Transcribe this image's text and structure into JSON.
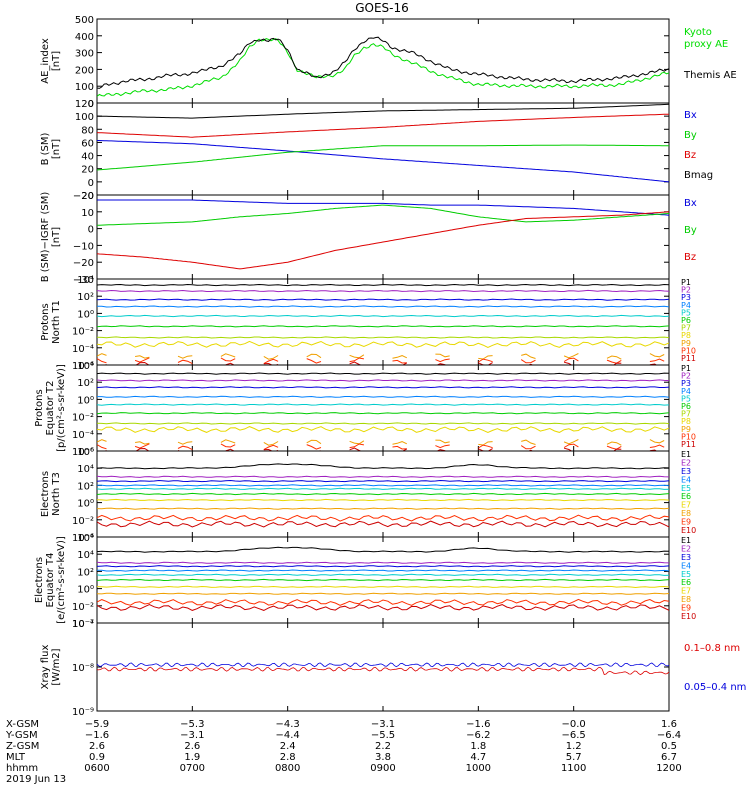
{
  "title": "GOES-16",
  "chart_data": [
    {
      "type": "line",
      "panel": "AE index",
      "ylabel": [
        "AE_index",
        "[nT]"
      ],
      "ylim": [
        0,
        500
      ],
      "yticks": [
        "0",
        "100",
        "200",
        "300",
        "400",
        "500"
      ],
      "series": [
        {
          "name": "Kyoto proxy AE",
          "label_lines": [
            "Kyoto",
            "proxy AE"
          ],
          "color": "#00dd00",
          "x": [
            6.0,
            6.1,
            6.3,
            6.5,
            6.7,
            6.9,
            7.1,
            7.3,
            7.5,
            7.6,
            7.7,
            7.8,
            7.9,
            8.0,
            8.1,
            8.3,
            8.5,
            8.6,
            8.7,
            8.8,
            8.9,
            9.0,
            9.1,
            9.3,
            9.5,
            9.7,
            10.0,
            10.5,
            11.0,
            11.5,
            12.0
          ],
          "values": [
            40,
            45,
            60,
            70,
            80,
            90,
            120,
            150,
            250,
            330,
            380,
            380,
            370,
            300,
            200,
            150,
            170,
            200,
            280,
            330,
            350,
            330,
            290,
            240,
            190,
            150,
            110,
            100,
            100,
            110,
            180
          ]
        },
        {
          "name": "Themis AE",
          "label_lines": [
            "Themis AE"
          ],
          "color": "#000000",
          "x": [
            6.0,
            6.1,
            6.3,
            6.5,
            6.7,
            6.9,
            7.1,
            7.3,
            7.5,
            7.6,
            7.7,
            7.8,
            7.9,
            8.0,
            8.1,
            8.3,
            8.5,
            8.6,
            8.7,
            8.8,
            8.9,
            9.0,
            9.1,
            9.3,
            9.5,
            9.7,
            10.0,
            10.5,
            11.0,
            11.5,
            12.0
          ],
          "values": [
            80,
            110,
            130,
            140,
            160,
            170,
            190,
            220,
            290,
            360,
            380,
            370,
            380,
            320,
            200,
            150,
            190,
            240,
            320,
            370,
            390,
            370,
            330,
            300,
            250,
            200,
            170,
            140,
            130,
            150,
            200
          ]
        }
      ]
    },
    {
      "type": "line",
      "panel": "B (SM)",
      "ylabel": [
        "B (SM)",
        "[nT]"
      ],
      "ylim": [
        -20,
        120
      ],
      "yticks": [
        "−20",
        "0",
        "20",
        "40",
        "60",
        "80",
        "100",
        "120"
      ],
      "series": [
        {
          "name": "Bx",
          "color": "#0000dd",
          "x": [
            6.0,
            7.0,
            8.0,
            9.0,
            10.0,
            11.0,
            12.0
          ],
          "values": [
            63,
            58,
            47,
            35,
            25,
            15,
            0
          ]
        },
        {
          "name": "By",
          "color": "#00cc00",
          "x": [
            6.0,
            7.0,
            8.0,
            9.0,
            10.0,
            11.0,
            12.0
          ],
          "values": [
            18,
            30,
            45,
            55,
            55,
            56,
            55
          ]
        },
        {
          "name": "Bz",
          "color": "#dd0000",
          "x": [
            6.0,
            7.0,
            8.0,
            9.0,
            10.0,
            11.0,
            12.0
          ],
          "values": [
            75,
            68,
            76,
            83,
            92,
            98,
            103
          ]
        },
        {
          "name": "Bmag",
          "color": "#000000",
          "x": [
            6.0,
            7.0,
            8.0,
            9.0,
            10.0,
            11.0,
            12.0
          ],
          "values": [
            100,
            97,
            103,
            108,
            110,
            112,
            118
          ]
        }
      ]
    },
    {
      "type": "line",
      "panel": "B (SM)-IGRF (SM)",
      "ylabel": [
        "B (SM)−IGRF (SM)",
        "[nT]"
      ],
      "ylim": [
        -30,
        20
      ],
      "yticks": [
        "−30",
        "−20",
        "−10",
        "0",
        "10",
        "20"
      ],
      "series": [
        {
          "name": "Bx",
          "color": "#0000dd",
          "x": [
            6.0,
            6.5,
            7.0,
            7.5,
            8.0,
            8.5,
            9.0,
            9.5,
            10.0,
            10.5,
            11.0,
            11.5,
            12.0
          ],
          "values": [
            17,
            17,
            17,
            16,
            15,
            15,
            15,
            14,
            14,
            13,
            12,
            10,
            8
          ]
        },
        {
          "name": "By",
          "color": "#00cc00",
          "x": [
            6.0,
            6.5,
            7.0,
            7.5,
            8.0,
            8.5,
            9.0,
            9.5,
            10.0,
            10.5,
            11.0,
            11.5,
            12.0
          ],
          "values": [
            2,
            3,
            4,
            7,
            9,
            12,
            14,
            12,
            7,
            4,
            5,
            7,
            9
          ]
        },
        {
          "name": "Bz",
          "color": "#dd0000",
          "x": [
            6.0,
            6.5,
            7.0,
            7.5,
            8.0,
            8.5,
            9.0,
            9.5,
            10.0,
            10.5,
            11.0,
            11.5,
            12.0
          ],
          "values": [
            -15,
            -17,
            -20,
            -24,
            -20,
            -13,
            -8,
            -3,
            2,
            6,
            7,
            8,
            10
          ]
        }
      ]
    },
    {
      "type": "line",
      "panel": "Protons North T1",
      "ylabel": [
        "Protons",
        "North T1"
      ],
      "log": true,
      "ylim_exp": [
        -6,
        4
      ],
      "yticks": [
        "10⁴",
        "10²",
        "10⁰",
        "10⁻²",
        "10⁻⁴",
        "10⁻⁶"
      ],
      "channels": [
        "P1",
        "P2",
        "P3",
        "P4",
        "P5",
        "P6",
        "P7",
        "P8",
        "P9",
        "P10",
        "P11"
      ],
      "channel_colors": [
        "#000000",
        "#a020c0",
        "#0000dd",
        "#0080ff",
        "#00cccc",
        "#00cc00",
        "#a8d800",
        "#e8d800",
        "#f0a000",
        "#ff3000",
        "#cc0000"
      ],
      "log_levels": [
        3.3,
        2.6,
        1.6,
        0.8,
        -0.3,
        -1.5,
        -2.8,
        -3.6,
        -5,
        -5.5,
        -6
      ]
    },
    {
      "type": "line",
      "panel": "Protons Equator T2",
      "ylabel": [
        "Protons",
        "Equator T2",
        "[p/(cm²-s-sr-keV)]"
      ],
      "log": true,
      "ylim_exp": [
        -6,
        4
      ],
      "yticks": [
        "10⁴",
        "10²",
        "10⁰",
        "10⁻²",
        "10⁻⁴",
        "10⁻⁶"
      ],
      "channels": [
        "P1",
        "P2",
        "P3",
        "P4",
        "P5",
        "P6",
        "P7",
        "P8",
        "P9",
        "P10",
        "P11"
      ],
      "channel_colors": [
        "#000000",
        "#a020c0",
        "#0000dd",
        "#0080ff",
        "#00cccc",
        "#00cc00",
        "#a8d800",
        "#e8d800",
        "#f0a000",
        "#ff3000",
        "#cc0000"
      ],
      "log_levels": [
        3.0,
        2.2,
        1.4,
        0.3,
        -0.6,
        -1.6,
        -2.8,
        -3.5,
        -5,
        -5.5,
        -6
      ]
    },
    {
      "type": "line",
      "panel": "Electrons North T3",
      "ylabel": [
        "Electrons",
        "North T3"
      ],
      "log": true,
      "ylim_exp": [
        -4,
        6
      ],
      "yticks": [
        "10⁶",
        "10⁴",
        "10²",
        "10⁰",
        "10⁻²",
        "10⁻⁴"
      ],
      "channels": [
        "E1",
        "E2",
        "E3",
        "E4",
        "E5",
        "E6",
        "E7",
        "E8",
        "E9",
        "E10"
      ],
      "channel_colors": [
        "#000000",
        "#a020c0",
        "#0000dd",
        "#0080ff",
        "#00cccc",
        "#00cc00",
        "#e8d800",
        "#f0a000",
        "#ff3000",
        "#cc0000"
      ],
      "log_levels": [
        4.0,
        3.0,
        2.5,
        2.0,
        1.6,
        1.0,
        0.3,
        -0.7,
        -1.8,
        -2.5
      ]
    },
    {
      "type": "line",
      "panel": "Electrons Equator T4",
      "ylabel": [
        "Electrons",
        "Equator T4",
        "[e/(cm²-s-sr-keV)]"
      ],
      "log": true,
      "ylim_exp": [
        -4,
        6
      ],
      "yticks": [
        "10⁶",
        "10⁴",
        "10²",
        "10⁰",
        "10⁻²",
        "10⁻⁴"
      ],
      "channels": [
        "E1",
        "E2",
        "E3",
        "E4",
        "E5",
        "E6",
        "E7",
        "E8",
        "E9",
        "E10"
      ],
      "channel_colors": [
        "#000000",
        "#a020c0",
        "#0000dd",
        "#0080ff",
        "#00cccc",
        "#00cc00",
        "#e8d800",
        "#f0a000",
        "#ff3000",
        "#cc0000"
      ],
      "log_levels": [
        4.3,
        3.0,
        2.6,
        2.1,
        1.6,
        1.0,
        0.2,
        -0.6,
        -1.6,
        -2.2
      ]
    },
    {
      "type": "line",
      "panel": "Xray flux",
      "ylabel": [
        "Xray flux",
        "[W/m2]"
      ],
      "log": true,
      "ylim_exp": [
        -9,
        -7
      ],
      "yticks": [
        "10⁻⁷",
        "10⁻⁸",
        "10⁻⁹"
      ],
      "series": [
        {
          "name": "0.1–0.8 nm",
          "color": "#dd0000",
          "log_level": -8.05
        },
        {
          "name": "0.05–0.4 nm",
          "color": "#0000dd",
          "log_level": -7.95
        }
      ]
    }
  ],
  "x_axis": {
    "rows": [
      {
        "label": "X-GSM",
        "values": [
          "−5.9",
          "−5.3",
          "−4.3",
          "−3.1",
          "−1.6",
          "−0.0",
          "1.6"
        ]
      },
      {
        "label": "Y-GSM",
        "values": [
          "−1.6",
          "−3.1",
          "−4.4",
          "−5.5",
          "−6.2",
          "−6.5",
          "−6.4"
        ]
      },
      {
        "label": "Z-GSM",
        "values": [
          "2.6",
          "2.6",
          "2.4",
          "2.2",
          "1.8",
          "1.2",
          "0.5"
        ]
      },
      {
        "label": "MLT",
        "values": [
          "0.9",
          "1.9",
          "2.8",
          "3.8",
          "4.7",
          "5.7",
          "6.7"
        ]
      },
      {
        "label": "hhmm",
        "values": [
          "0600",
          "0700",
          "0800",
          "0900",
          "1000",
          "1100",
          "1200"
        ]
      }
    ],
    "date": "2019 Jun 13"
  }
}
